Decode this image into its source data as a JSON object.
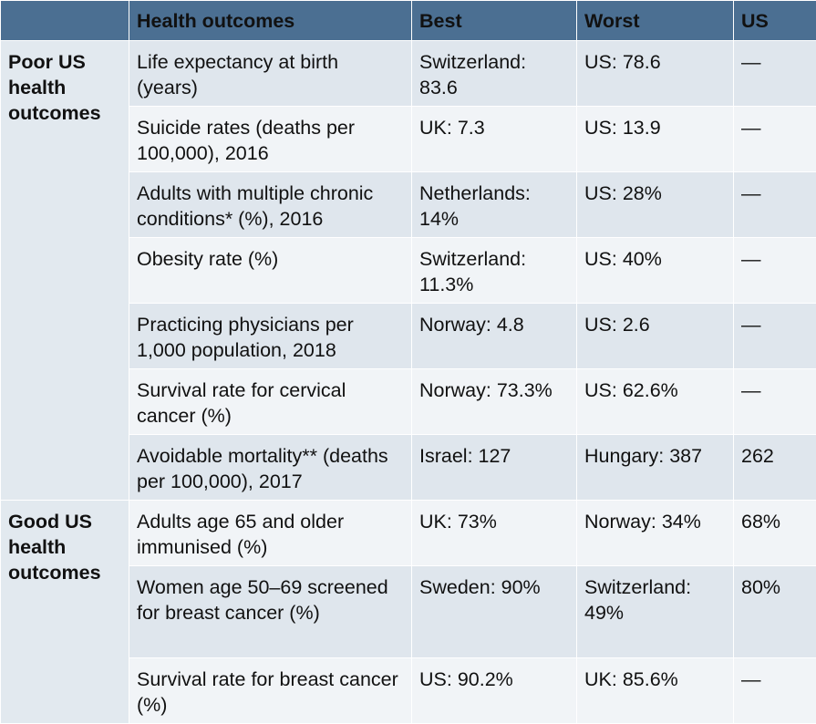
{
  "headers": [
    "",
    "Health outcomes",
    "Best",
    "Worst",
    "US"
  ],
  "groups": [
    {
      "label": "Poor US health outcomes",
      "rows": [
        {
          "outcome": "Life expectancy at birth (years)",
          "best": "Switzerland: 83.6",
          "worst": "US: 78.6",
          "us": "—"
        },
        {
          "outcome": "Suicide rates (deaths per 100,000), 2016",
          "best": "UK: 7.3",
          "worst": "US: 13.9",
          "us": "—"
        },
        {
          "outcome": "Adults with multiple chronic conditions* (%), 2016",
          "best": "Netherlands: 14%",
          "worst": "US: 28%",
          "us": "—"
        },
        {
          "outcome": "Obesity rate (%)",
          "best": "Switzerland: 11.3%",
          "worst": "US: 40%",
          "us": "—"
        },
        {
          "outcome": "Practicing physicians per 1,000 population, 2018",
          "best": "Norway: 4.8",
          "worst": "US: 2.6",
          "us": "—"
        },
        {
          "outcome": "Survival rate for cervical cancer (%)",
          "best": "Norway: 73.3%",
          "worst": "US: 62.6%",
          "us": "—"
        },
        {
          "outcome": "Avoidable mortality** (deaths per 100,000), 2017",
          "best": "Israel: 127",
          "worst": "Hungary: 387",
          "us": "262"
        }
      ]
    },
    {
      "label": "Good US health outcomes",
      "rows": [
        {
          "outcome": "Adults age 65 and older immunised (%)",
          "best": "UK: 73%",
          "worst": "Norway: 34%",
          "us": "68%"
        },
        {
          "outcome": "Women age 50–69 screened for breast cancer (%)",
          "best": "Sweden: 90%",
          "worst": "Switzerland: 49%",
          "us": "80%"
        },
        {
          "outcome": "Survival rate for breast cancer (%)",
          "best": "US: 90.2%",
          "worst": "UK: 85.6%",
          "us": "—"
        }
      ]
    }
  ]
}
